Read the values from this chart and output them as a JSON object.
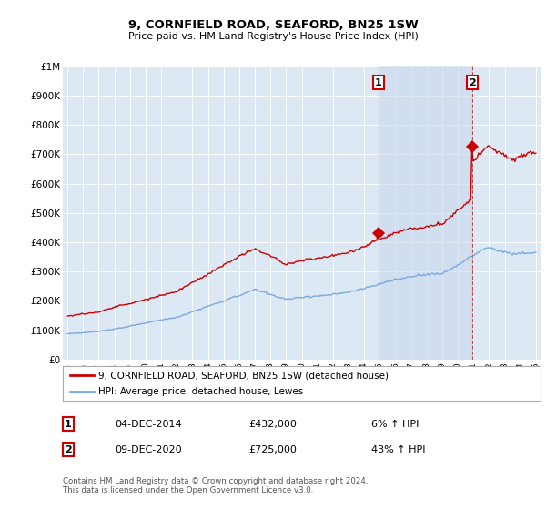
{
  "title": "9, CORNFIELD ROAD, SEAFORD, BN25 1SW",
  "subtitle": "Price paid vs. HM Land Registry's House Price Index (HPI)",
  "y_ticks": [
    0,
    100000,
    200000,
    300000,
    400000,
    500000,
    600000,
    700000,
    800000,
    900000,
    1000000
  ],
  "y_tick_labels": [
    "£0",
    "£100K",
    "£200K",
    "£300K",
    "£400K",
    "£500K",
    "£600K",
    "£700K",
    "£800K",
    "£900K",
    "£1M"
  ],
  "x_start_year": 1995,
  "x_end_year": 2025,
  "sale1_year": 2014.92,
  "sale1_price": 432000,
  "sale1_label": "1",
  "sale1_date": "04-DEC-2014",
  "sale1_hpi_pct": "6%",
  "sale2_year": 2020.92,
  "sale2_price": 725000,
  "sale2_label": "2",
  "sale2_date": "09-DEC-2020",
  "sale2_hpi_pct": "43%",
  "red_line_color": "#cc0000",
  "blue_line_color": "#7aaadd",
  "shade_color": "#c8d8ee",
  "background_color": "#dce9f5",
  "plot_bg_color": "#dce9f5",
  "grid_color": "#ffffff",
  "legend_label_red": "9, CORNFIELD ROAD, SEAFORD, BN25 1SW (detached house)",
  "legend_label_blue": "HPI: Average price, detached house, Lewes",
  "footer": "Contains HM Land Registry data © Crown copyright and database right 2024.\nThis data is licensed under the Open Government Licence v3.0.",
  "hpi_base_1995": 88000
}
